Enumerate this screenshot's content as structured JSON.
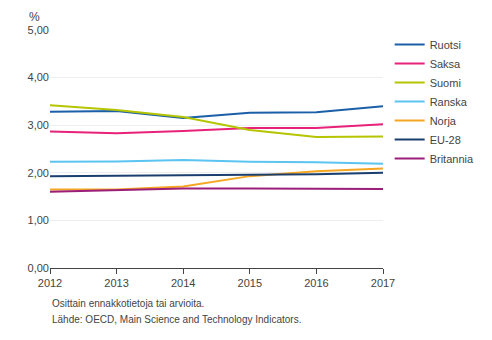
{
  "chart_data": {
    "type": "line",
    "ylabel": "%",
    "annotations": [
      "Osittain ennakkotietoja tai arvioita.",
      "Lähde: OECD, Main Science and Technology Indicators."
    ],
    "x": [
      2012,
      2013,
      2014,
      2015,
      2016,
      2017
    ],
    "series": [
      {
        "name": "Ruotsi",
        "color": "#1a5fa8",
        "values": [
          3.28,
          3.3,
          3.15,
          3.26,
          3.27,
          3.4
        ]
      },
      {
        "name": "Saksa",
        "color": "#e8217a",
        "values": [
          2.87,
          2.83,
          2.88,
          2.94,
          2.94,
          3.02
        ]
      },
      {
        "name": "Suomi",
        "color": "#b5c500",
        "values": [
          3.42,
          3.32,
          3.17,
          2.9,
          2.75,
          2.76
        ]
      },
      {
        "name": "Ranska",
        "color": "#5bc4f0",
        "values": [
          2.23,
          2.24,
          2.27,
          2.23,
          2.22,
          2.19
        ]
      },
      {
        "name": "Norja",
        "color": "#f5a623",
        "values": [
          1.65,
          1.65,
          1.71,
          1.93,
          2.03,
          2.09
        ]
      },
      {
        "name": "EU-28",
        "color": "#1a3e6e",
        "values": [
          1.93,
          1.94,
          1.95,
          1.96,
          1.97,
          2.0
        ]
      },
      {
        "name": "Britannia",
        "color": "#9b1f7a",
        "values": [
          1.6,
          1.63,
          1.67,
          1.67,
          1.67,
          1.66
        ]
      }
    ],
    "xlim": [
      2012,
      2017
    ],
    "xticks": [
      2012,
      2013,
      2014,
      2015,
      2016,
      2017
    ],
    "ylim": [
      0.0,
      5.0
    ],
    "yticks": [
      {
        "value": 0.0,
        "label": "0,00"
      },
      {
        "value": 1.0,
        "label": "1,00"
      },
      {
        "value": 2.0,
        "label": "2,00"
      },
      {
        "value": 3.0,
        "label": "3,00"
      },
      {
        "value": 4.0,
        "label": "4,00"
      },
      {
        "value": 5.0,
        "label": "5,00"
      }
    ],
    "grid": true,
    "legend": "right"
  }
}
